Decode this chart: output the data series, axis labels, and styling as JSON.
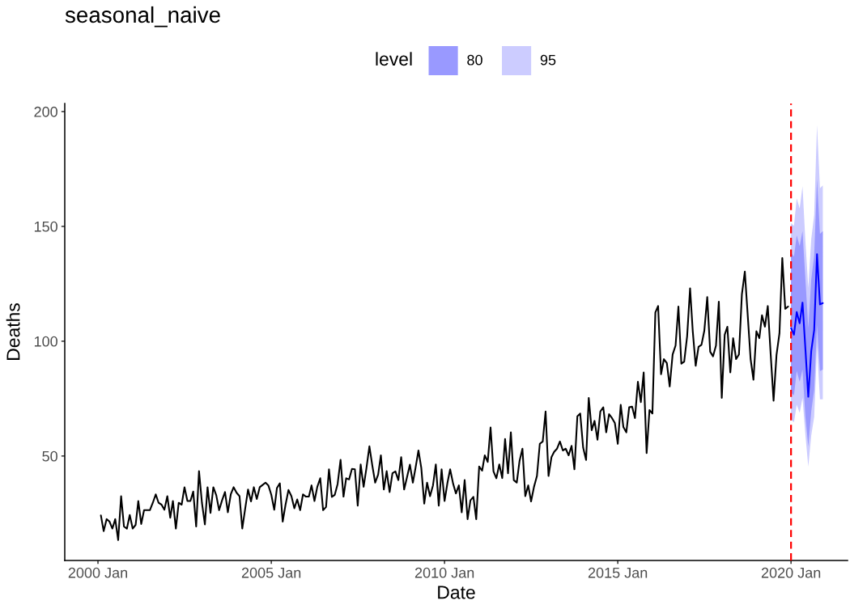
{
  "chart_data": {
    "type": "line",
    "title": "seasonal_naive",
    "xlabel": "Date",
    "ylabel": "Deaths",
    "legend_title": "level",
    "legend": "top",
    "grid": false,
    "xlim": [
      "1999-01-16",
      "2021-08-19"
    ],
    "ylim": [
      4.5,
      203.5
    ],
    "xticks": [
      {
        "value": "2000-01",
        "label": "2000 Jan"
      },
      {
        "value": "2005-01",
        "label": "2005 Jan"
      },
      {
        "value": "2010-01",
        "label": "2010 Jan"
      },
      {
        "value": "2015-01",
        "label": "2015 Jan"
      },
      {
        "value": "2020-01",
        "label": "2020 Jan"
      }
    ],
    "yticks": [
      50,
      100,
      150,
      200
    ],
    "ref_lines": [
      {
        "axis": "x",
        "value": "2020-01",
        "color": "#ff0000",
        "line_style": "dashed"
      }
    ],
    "series": [
      {
        "name": "95",
        "color": "#ccccff",
        "x": [
          "2020-01",
          "2020-02",
          "2020-03",
          "2020-04",
          "2020-05",
          "2020-06",
          "2020-07",
          "2020-08",
          "2020-09",
          "2020-10",
          "2020-11",
          "2020-12"
        ],
        "values": [
          null,
          null,
          null,
          null,
          null,
          null,
          null,
          null,
          null,
          null,
          null,
          null
        ],
        "lower": [
          65.9,
          64.7,
          72.3,
          68.8,
          75.3,
          58.9,
          45.4,
          58.9,
          67.0,
          97.5,
          74.7,
          74.7
        ],
        "upper": [
          151.4,
          150.2,
          162.2,
          157.8,
          167.5,
          143.2,
          123.3,
          144.4,
          154.9,
          194.1,
          166.6,
          167.8
        ]
      },
      {
        "name": "80",
        "color": "#9999ff",
        "x": [
          "2020-01",
          "2020-02",
          "2020-03",
          "2020-04",
          "2020-05",
          "2020-06",
          "2020-07",
          "2020-08",
          "2020-09",
          "2020-10",
          "2020-11",
          "2020-12"
        ],
        "values": [
          null,
          null,
          null,
          null,
          null,
          null,
          null,
          null,
          null,
          null,
          null,
          null
        ],
        "lower": [
          77.6,
          76.4,
          87.0,
          82.3,
          87.6,
          67.0,
          54.2,
          69.4,
          78.8,
          106.9,
          87.0,
          87.6
        ],
        "upper": [
          138.5,
          136.8,
          146.1,
          141.4,
          147.9,
          126.8,
          105.7,
          126.8,
          137.3,
          170.7,
          146.7,
          147.9
        ]
      },
      {
        "color": "#000000",
        "x": [
          "2000-02",
          "2000-03",
          "2000-04",
          "2000-05",
          "2000-06",
          "2000-07",
          "2000-08",
          "2000-09",
          "2000-10",
          "2000-11",
          "2000-12",
          "2001-01",
          "2001-02",
          "2001-03",
          "2001-04",
          "2001-05",
          "2001-06",
          "2001-07",
          "2001-08",
          "2001-09",
          "2001-10",
          "2001-11",
          "2001-12",
          "2002-01",
          "2002-02",
          "2002-03",
          "2002-04",
          "2002-05",
          "2002-06",
          "2002-07",
          "2002-08",
          "2002-09",
          "2002-10",
          "2002-11",
          "2002-12",
          "2003-01",
          "2003-02",
          "2003-03",
          "2003-04",
          "2003-05",
          "2003-06",
          "2003-07",
          "2003-08",
          "2003-09",
          "2003-10",
          "2003-11",
          "2003-12",
          "2004-01",
          "2004-02",
          "2004-03",
          "2004-04",
          "2004-05",
          "2004-06",
          "2004-07",
          "2004-08",
          "2004-09",
          "2004-10",
          "2004-11",
          "2004-12",
          "2005-01",
          "2005-02",
          "2005-03",
          "2005-04",
          "2005-05",
          "2005-06",
          "2005-07",
          "2005-08",
          "2005-09",
          "2005-10",
          "2005-11",
          "2005-12",
          "2006-01",
          "2006-02",
          "2006-03",
          "2006-04",
          "2006-05",
          "2006-06",
          "2006-07",
          "2006-08",
          "2006-09",
          "2006-10",
          "2006-11",
          "2006-12",
          "2007-01",
          "2007-02",
          "2007-03",
          "2007-04",
          "2007-05",
          "2007-06",
          "2007-07",
          "2007-08",
          "2007-09",
          "2007-10",
          "2007-11",
          "2007-12",
          "2008-01",
          "2008-02",
          "2008-03",
          "2008-04",
          "2008-05",
          "2008-06",
          "2008-07",
          "2008-08",
          "2008-09",
          "2008-10",
          "2008-11",
          "2008-12",
          "2009-01",
          "2009-02",
          "2009-03",
          "2009-04",
          "2009-05",
          "2009-06",
          "2009-07",
          "2009-08",
          "2009-09",
          "2009-10",
          "2009-11",
          "2009-12",
          "2010-01",
          "2010-02",
          "2010-03",
          "2010-04",
          "2010-05",
          "2010-06",
          "2010-07",
          "2010-08",
          "2010-09",
          "2010-10",
          "2010-11",
          "2010-12",
          "2011-01",
          "2011-02",
          "2011-03",
          "2011-04",
          "2011-05",
          "2011-06",
          "2011-07",
          "2011-08",
          "2011-09",
          "2011-10",
          "2011-11",
          "2011-12",
          "2012-01",
          "2012-02",
          "2012-03",
          "2012-04",
          "2012-05",
          "2012-06",
          "2012-07",
          "2012-08",
          "2012-09",
          "2012-10",
          "2012-11",
          "2012-12",
          "2013-01",
          "2013-02",
          "2013-03",
          "2013-04",
          "2013-05",
          "2013-06",
          "2013-07",
          "2013-08",
          "2013-09",
          "2013-10",
          "2013-11",
          "2013-12",
          "2014-01",
          "2014-02",
          "2014-03",
          "2014-04",
          "2014-05",
          "2014-06",
          "2014-07",
          "2014-08",
          "2014-09",
          "2014-10",
          "2014-11",
          "2014-12",
          "2015-01",
          "2015-02",
          "2015-03",
          "2015-04",
          "2015-05",
          "2015-06",
          "2015-07",
          "2015-08",
          "2015-09",
          "2015-10",
          "2015-11",
          "2015-12",
          "2016-01",
          "2016-02",
          "2016-03",
          "2016-04",
          "2016-05",
          "2016-06",
          "2016-07",
          "2016-08",
          "2016-09",
          "2016-10",
          "2016-11",
          "2016-12",
          "2017-01",
          "2017-02",
          "2017-03",
          "2017-04",
          "2017-05",
          "2017-06",
          "2017-07",
          "2017-08",
          "2017-09",
          "2017-10",
          "2017-11",
          "2017-12",
          "2018-01",
          "2018-02",
          "2018-03",
          "2018-04",
          "2018-05",
          "2018-06",
          "2018-07",
          "2018-08",
          "2018-09",
          "2018-10",
          "2018-11",
          "2018-12",
          "2019-01",
          "2019-02",
          "2019-03",
          "2019-04",
          "2019-05",
          "2019-06",
          "2019-07",
          "2019-08",
          "2019-09",
          "2019-10",
          "2019-11",
          "2019-12"
        ],
        "values": [
          24.1,
          17.3,
          22.5,
          21.5,
          18.4,
          22.5,
          13.4,
          32.5,
          19.3,
          18.4,
          24.3,
          18.4,
          20.0,
          30.4,
          20.4,
          26.4,
          26.4,
          26.4,
          29.6,
          33.3,
          29.6,
          28.8,
          26.6,
          32.5,
          23.1,
          30.4,
          18.4,
          29.6,
          28.8,
          36.4,
          30.4,
          30.4,
          34.5,
          19.3,
          43.4,
          29.6,
          20.2,
          36.4,
          25.2,
          36.4,
          32.9,
          26.4,
          30.7,
          34.3,
          25.5,
          33.3,
          36.4,
          34.0,
          32.5,
          18.4,
          27.2,
          35.4,
          30.2,
          36.4,
          31.3,
          36.4,
          37.4,
          38.4,
          37.2,
          33.1,
          26.6,
          36.0,
          38.1,
          21.4,
          29.0,
          35.2,
          32.5,
          27.2,
          31.1,
          26.4,
          33.3,
          32.3,
          32.3,
          37.2,
          30.4,
          36.6,
          40.3,
          26.4,
          27.8,
          44.2,
          32.2,
          33.1,
          37.8,
          48.3,
          32.3,
          40.3,
          39.8,
          44.4,
          44.2,
          28.4,
          46.3,
          36.6,
          44.8,
          54.2,
          46.0,
          38.4,
          41.9,
          50.3,
          35.4,
          43.4,
          34.3,
          42.5,
          43.3,
          39.5,
          49.5,
          35.4,
          40.7,
          46.2,
          38.4,
          44.8,
          52.4,
          44.8,
          29.3,
          38.4,
          32.5,
          37.2,
          46.3,
          28.4,
          44.2,
          30.4,
          38.4,
          44.2,
          38.0,
          33.7,
          37.2,
          25.5,
          39.5,
          22.5,
          30.7,
          32.2,
          22.5,
          45.4,
          43.6,
          50.3,
          47.4,
          62.4,
          43.3,
          40.3,
          46.3,
          40.4,
          57.4,
          42.5,
          60.3,
          39.5,
          38.4,
          47.7,
          53.2,
          32.5,
          37.2,
          30.2,
          36.6,
          41.3,
          55.3,
          56.3,
          69.4,
          41.3,
          49.5,
          51.8,
          53.2,
          56.3,
          52.4,
          53.2,
          50.3,
          54.4,
          44.2,
          67.3,
          68.5,
          53.6,
          48.3,
          75.3,
          61.2,
          65.3,
          57.1,
          69.4,
          71.2,
          60.3,
          68.2,
          66.5,
          64.4,
          55.3,
          72.3,
          62.6,
          60.3,
          71.2,
          71.5,
          66.5,
          82.3,
          73.5,
          86.4,
          51.3,
          70.0,
          68.5,
          112.5,
          115.3,
          85.6,
          92.2,
          90.5,
          80.3,
          94.2,
          98.1,
          115.1,
          90.2,
          91.1,
          102.2,
          123.0,
          104.5,
          89.3,
          97.5,
          98.4,
          104.5,
          119.2,
          95.4,
          93.4,
          98.1,
          117.2,
          75.3,
          102.8,
          106.3,
          86.4,
          101.3,
          92.2,
          94.2,
          120.3,
          130.3,
          111.6,
          92.2,
          83.2,
          104.3,
          101.3,
          111.3,
          106.3,
          115.3,
          94.0,
          74.1,
          94.0,
          103.4,
          136.2,
          114.1,
          115.1
        ]
      },
      {
        "color": "#0000ff",
        "x": [
          "2020-01",
          "2020-02",
          "2020-03",
          "2020-04",
          "2020-05",
          "2020-06",
          "2020-07",
          "2020-08",
          "2020-09",
          "2020-10",
          "2020-11",
          "2020-12"
        ],
        "values": [
          105.7,
          102.8,
          112.7,
          107.8,
          116.8,
          96.3,
          75.8,
          95.7,
          104.8,
          137.9,
          116.0,
          116.6
        ]
      }
    ]
  }
}
